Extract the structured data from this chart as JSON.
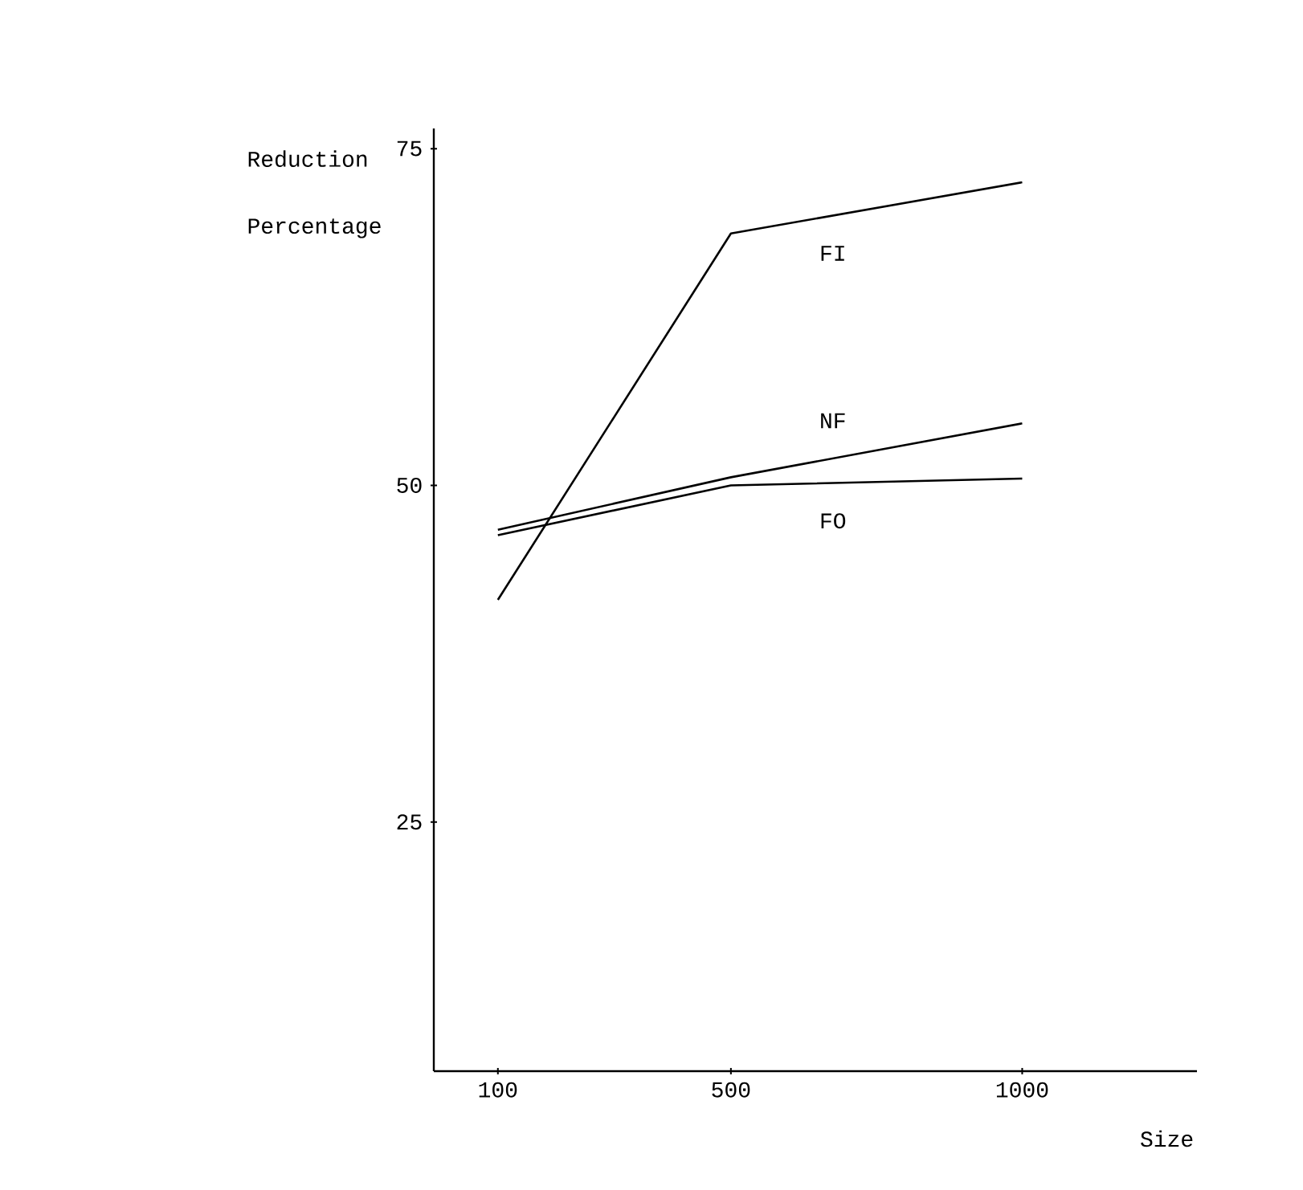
{
  "chart_data": {
    "type": "line",
    "ylabel": "Reduction Percentage",
    "xlabel": "Size",
    "x": [
      100,
      500,
      1000
    ],
    "xlim": [
      -10,
      1300
    ],
    "ylim": [
      6.5,
      76.5
    ],
    "xticks": [
      100,
      500,
      1000
    ],
    "yticks": [
      25,
      50,
      75
    ],
    "marker": "none",
    "line_style": "solid",
    "series": [
      {
        "name": "FI",
        "color": "#000000",
        "values": [
          41.5,
          68.7,
          72.5
        ]
      },
      {
        "name": "NF",
        "color": "#000000",
        "values": [
          46.7,
          50.6,
          54.6
        ]
      },
      {
        "name": "FO",
        "color": "#000000",
        "values": [
          46.3,
          50.0,
          50.5
        ]
      }
    ]
  }
}
